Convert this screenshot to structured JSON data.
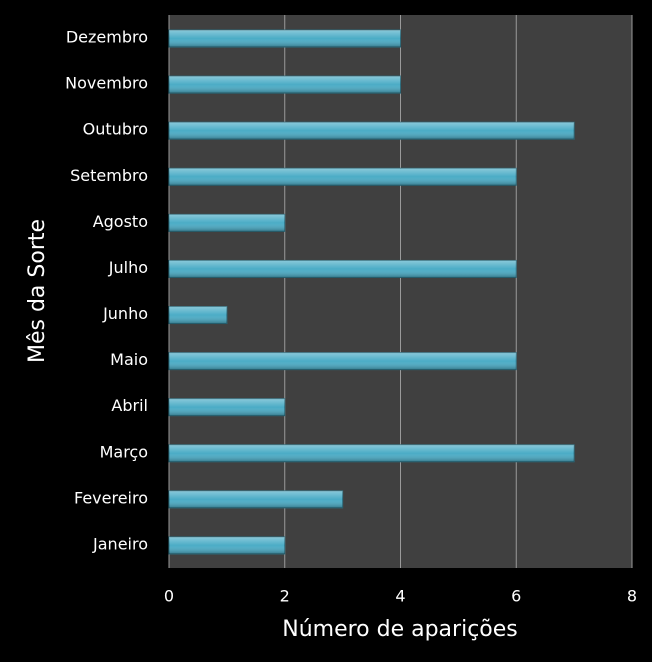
{
  "chart_data": {
    "type": "bar",
    "orientation": "horizontal",
    "x_label": "Número de aparições",
    "y_label": "Mês da Sorte",
    "categories": [
      "Janeiro",
      "Fevereiro",
      "Março",
      "Abril",
      "Maio",
      "Junho",
      "Julho",
      "Agosto",
      "Setembro",
      "Outubro",
      "Novembro",
      "Dezembro"
    ],
    "values": [
      2,
      3,
      7,
      2,
      6,
      1,
      6,
      2,
      6,
      7,
      4,
      4
    ],
    "color": "#4bacc6",
    "xlim": [
      0,
      8
    ],
    "xticks": [
      0,
      2,
      4,
      6,
      8
    ],
    "grid": true
  }
}
